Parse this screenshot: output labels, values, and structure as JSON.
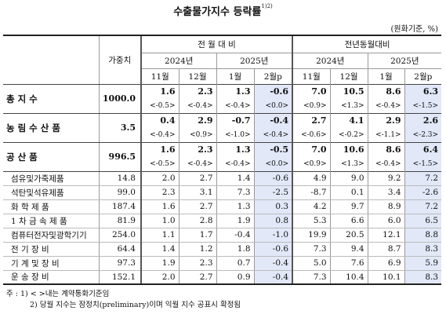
{
  "title": "수출물가지수 등락률",
  "title_sup": "1)2)",
  "unit": "(원화기준, %)",
  "header": {
    "weight": "가중치",
    "group_mom": "전 월 대 비",
    "group_yoy": "전년동월대비",
    "year_2024": "2024년",
    "year_2025": "2025년",
    "months": [
      "11월",
      "12월",
      "1월",
      "2월p"
    ]
  },
  "groups": [
    {
      "label": "총 지 수",
      "weight": "1000.0",
      "mom": [
        "1.6",
        "2.3",
        "1.3",
        "-0.6"
      ],
      "yoy": [
        "7.0",
        "10.5",
        "8.6",
        "6.3"
      ],
      "mom_sub": [
        "<-0.5>",
        "<-0.4>",
        "<-0.4>",
        "<0.0>"
      ],
      "yoy_sub": [
        "<0.9>",
        "<1.3>",
        "<-0.4>",
        "<-1.5>"
      ]
    },
    {
      "label": "농 림 수 산 품",
      "weight": "3.5",
      "mom": [
        "0.4",
        "2.9",
        "-0.7",
        "-0.4"
      ],
      "yoy": [
        "2.7",
        "4.1",
        "2.9",
        "2.6"
      ],
      "mom_sub": [
        "<-0.4>",
        "<0.9>",
        "<-1.0>",
        "<-0.4>"
      ],
      "yoy_sub": [
        "<-0.6>",
        "<-0.2>",
        "<-1.1>",
        "<-2.3>"
      ]
    },
    {
      "label": "공 산 품",
      "weight": "996.5",
      "mom": [
        "1.6",
        "2.3",
        "1.3",
        "-0.5"
      ],
      "yoy": [
        "7.0",
        "10.6",
        "8.6",
        "6.4"
      ],
      "mom_sub": [
        "<-0.5>",
        "<-0.4>",
        "<-0.4>",
        "<0.0>"
      ],
      "yoy_sub": [
        "<0.9>",
        "<1.3>",
        "<-0.4>",
        "<-1.5>"
      ]
    }
  ],
  "items": [
    {
      "label": "섬유및가죽제품",
      "weight": "14.8",
      "mom": [
        "2.0",
        "2.7",
        "1.4",
        "-0.6"
      ],
      "yoy": [
        "4.9",
        "9.0",
        "9.2",
        "7.2"
      ]
    },
    {
      "label": "석탄및석유제품",
      "weight": "99.0",
      "mom": [
        "2.3",
        "3.1",
        "7.3",
        "-2.5"
      ],
      "yoy": [
        "-8.7",
        "0.1",
        "3.4",
        "-2.6"
      ]
    },
    {
      "label": "화 학 제 품",
      "weight": "187.4",
      "mom": [
        "1.6",
        "2.7",
        "1.3",
        "0.3"
      ],
      "yoy": [
        "4.2",
        "9.7",
        "8.9",
        "7.2"
      ]
    },
    {
      "label": "1 차 금 속 제 품",
      "weight": "81.9",
      "mom": [
        "1.0",
        "2.8",
        "1.9",
        "0.8"
      ],
      "yoy": [
        "5.3",
        "6.6",
        "6.0",
        "6.5"
      ]
    },
    {
      "label": "컴퓨터전자및광학기기",
      "weight": "254.0",
      "mom": [
        "1.1",
        "1.7",
        "-0.4",
        "-1.0"
      ],
      "yoy": [
        "19.9",
        "20.5",
        "12.1",
        "8.8"
      ]
    },
    {
      "label": "전 기 장 비",
      "weight": "64.4",
      "mom": [
        "1.4",
        "1.2",
        "1.8",
        "-0.6"
      ],
      "yoy": [
        "7.3",
        "9.4",
        "8.7",
        "8.3"
      ]
    },
    {
      "label": "기 계 및 장 비",
      "weight": "97.3",
      "mom": [
        "1.9",
        "2.3",
        "0.7",
        "-0.4"
      ],
      "yoy": [
        "5.0",
        "7.6",
        "6.9",
        "5.9"
      ]
    },
    {
      "label": "운 송 장 비",
      "weight": "152.1",
      "mom": [
        "2.0",
        "2.7",
        "0.9",
        "-0.4"
      ],
      "yoy": [
        "7.3",
        "10.4",
        "10.1",
        "8.3"
      ]
    }
  ],
  "notes": {
    "note1": "주 : 1) < >내는 계약통화기준임",
    "note2": "2) 당월 지수는 잠정치(preliminary)이며 익월 지수 공표시 확정됨"
  }
}
